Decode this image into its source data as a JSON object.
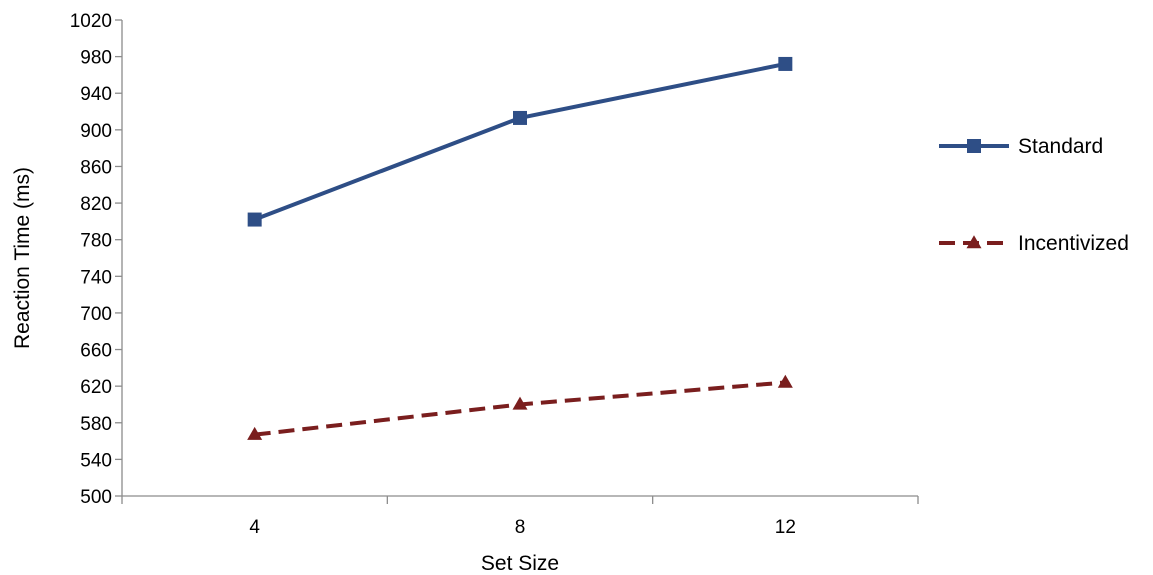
{
  "chart_data": {
    "type": "line",
    "title": "",
    "xlabel": "Set Size",
    "ylabel": "Reaction Time (ms)",
    "categories": [
      "4",
      "8",
      "12"
    ],
    "ylim": [
      500,
      1020
    ],
    "yticks": [
      500,
      540,
      580,
      620,
      660,
      700,
      740,
      780,
      820,
      860,
      900,
      940,
      980,
      1020
    ],
    "grid": false,
    "legend_position": "right",
    "series": [
      {
        "name": "Standard",
        "values": [
          802,
          913,
          972
        ],
        "color": "#2E4E86",
        "marker": "square",
        "dash": "solid"
      },
      {
        "name": "Incentivized",
        "values": [
          567,
          600,
          624
        ],
        "color": "#7A1E1E",
        "marker": "triangle",
        "dash": "dashed"
      }
    ]
  }
}
